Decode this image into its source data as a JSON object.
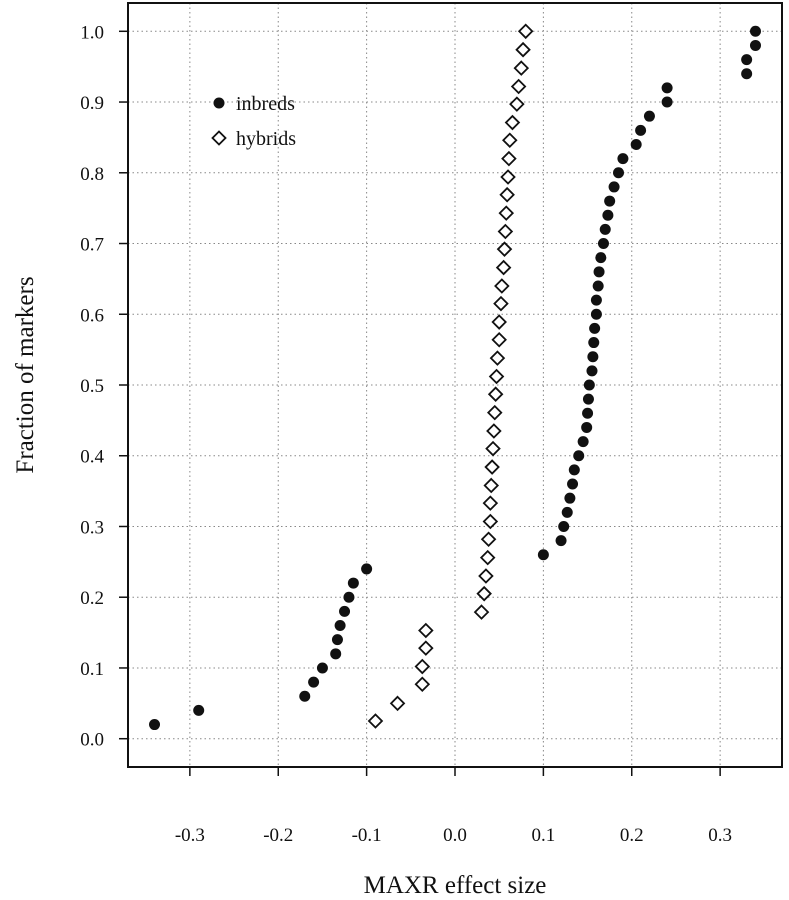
{
  "chart_data": {
    "type": "scatter",
    "title": "",
    "xlabel": "MAXR effect size",
    "ylabel": "Fraction of markers",
    "xlim": [
      -0.37,
      0.37
    ],
    "ylim": [
      -0.04,
      1.04
    ],
    "xticks": [
      -0.3,
      -0.2,
      -0.1,
      0.0,
      0.1,
      0.2,
      0.3
    ],
    "xtick_labels": [
      "-0.3",
      "-0.2",
      "-0.1",
      "0.0",
      "0.1",
      "0.2",
      "0.3"
    ],
    "yticks": [
      0.0,
      0.1,
      0.2,
      0.3,
      0.4,
      0.5,
      0.6,
      0.7,
      0.8,
      0.9,
      1.0
    ],
    "ytick_labels": [
      "0.0",
      "0.1",
      "0.2",
      "0.3",
      "0.4",
      "0.5",
      "0.6",
      "0.7",
      "0.8",
      "0.9",
      "1.0"
    ],
    "grid": true,
    "legend_position": "top-left",
    "series": [
      {
        "name": "inbreds",
        "marker": "filled-circle",
        "color": "#111111",
        "points": [
          [
            -0.34,
            0.02
          ],
          [
            -0.29,
            0.04
          ],
          [
            -0.17,
            0.06
          ],
          [
            -0.16,
            0.08
          ],
          [
            -0.15,
            0.1
          ],
          [
            -0.135,
            0.12
          ],
          [
            -0.133,
            0.14
          ],
          [
            -0.13,
            0.16
          ],
          [
            -0.125,
            0.18
          ],
          [
            -0.12,
            0.2
          ],
          [
            -0.115,
            0.22
          ],
          [
            -0.1,
            0.24
          ],
          [
            0.1,
            0.26
          ],
          [
            0.12,
            0.28
          ],
          [
            0.123,
            0.3
          ],
          [
            0.127,
            0.32
          ],
          [
            0.13,
            0.34
          ],
          [
            0.133,
            0.36
          ],
          [
            0.135,
            0.38
          ],
          [
            0.14,
            0.4
          ],
          [
            0.145,
            0.42
          ],
          [
            0.149,
            0.44
          ],
          [
            0.15,
            0.46
          ],
          [
            0.151,
            0.48
          ],
          [
            0.152,
            0.5
          ],
          [
            0.155,
            0.52
          ],
          [
            0.156,
            0.54
          ],
          [
            0.157,
            0.56
          ],
          [
            0.158,
            0.58
          ],
          [
            0.16,
            0.6
          ],
          [
            0.16,
            0.62
          ],
          [
            0.162,
            0.64
          ],
          [
            0.163,
            0.66
          ],
          [
            0.165,
            0.68
          ],
          [
            0.168,
            0.7
          ],
          [
            0.17,
            0.72
          ],
          [
            0.173,
            0.74
          ],
          [
            0.175,
            0.76
          ],
          [
            0.18,
            0.78
          ],
          [
            0.185,
            0.8
          ],
          [
            0.19,
            0.82
          ],
          [
            0.205,
            0.84
          ],
          [
            0.21,
            0.86
          ],
          [
            0.22,
            0.88
          ],
          [
            0.24,
            0.9
          ],
          [
            0.24,
            0.92
          ],
          [
            0.33,
            0.94
          ],
          [
            0.33,
            0.96
          ],
          [
            0.34,
            0.98
          ],
          [
            0.34,
            1.0
          ]
        ]
      },
      {
        "name": "hybrids",
        "marker": "open-diamond",
        "color": "#111111",
        "points": [
          [
            -0.09,
            0.025
          ],
          [
            -0.065,
            0.05
          ],
          [
            -0.037,
            0.077
          ],
          [
            -0.037,
            0.102
          ],
          [
            -0.033,
            0.128
          ],
          [
            -0.033,
            0.153
          ],
          [
            0.03,
            0.179
          ],
          [
            0.033,
            0.205
          ],
          [
            0.035,
            0.23
          ],
          [
            0.037,
            0.256
          ],
          [
            0.038,
            0.282
          ],
          [
            0.04,
            0.307
          ],
          [
            0.04,
            0.333
          ],
          [
            0.041,
            0.358
          ],
          [
            0.042,
            0.384
          ],
          [
            0.043,
            0.41
          ],
          [
            0.044,
            0.435
          ],
          [
            0.045,
            0.461
          ],
          [
            0.046,
            0.487
          ],
          [
            0.047,
            0.512
          ],
          [
            0.048,
            0.538
          ],
          [
            0.05,
            0.564
          ],
          [
            0.05,
            0.589
          ],
          [
            0.052,
            0.615
          ],
          [
            0.053,
            0.64
          ],
          [
            0.055,
            0.666
          ],
          [
            0.056,
            0.692
          ],
          [
            0.057,
            0.717
          ],
          [
            0.058,
            0.743
          ],
          [
            0.059,
            0.769
          ],
          [
            0.06,
            0.794
          ],
          [
            0.061,
            0.82
          ],
          [
            0.062,
            0.846
          ],
          [
            0.065,
            0.871
          ],
          [
            0.07,
            0.897
          ],
          [
            0.072,
            0.922
          ],
          [
            0.075,
            0.948
          ],
          [
            0.077,
            0.974
          ],
          [
            0.08,
            1.0
          ]
        ]
      }
    ]
  }
}
